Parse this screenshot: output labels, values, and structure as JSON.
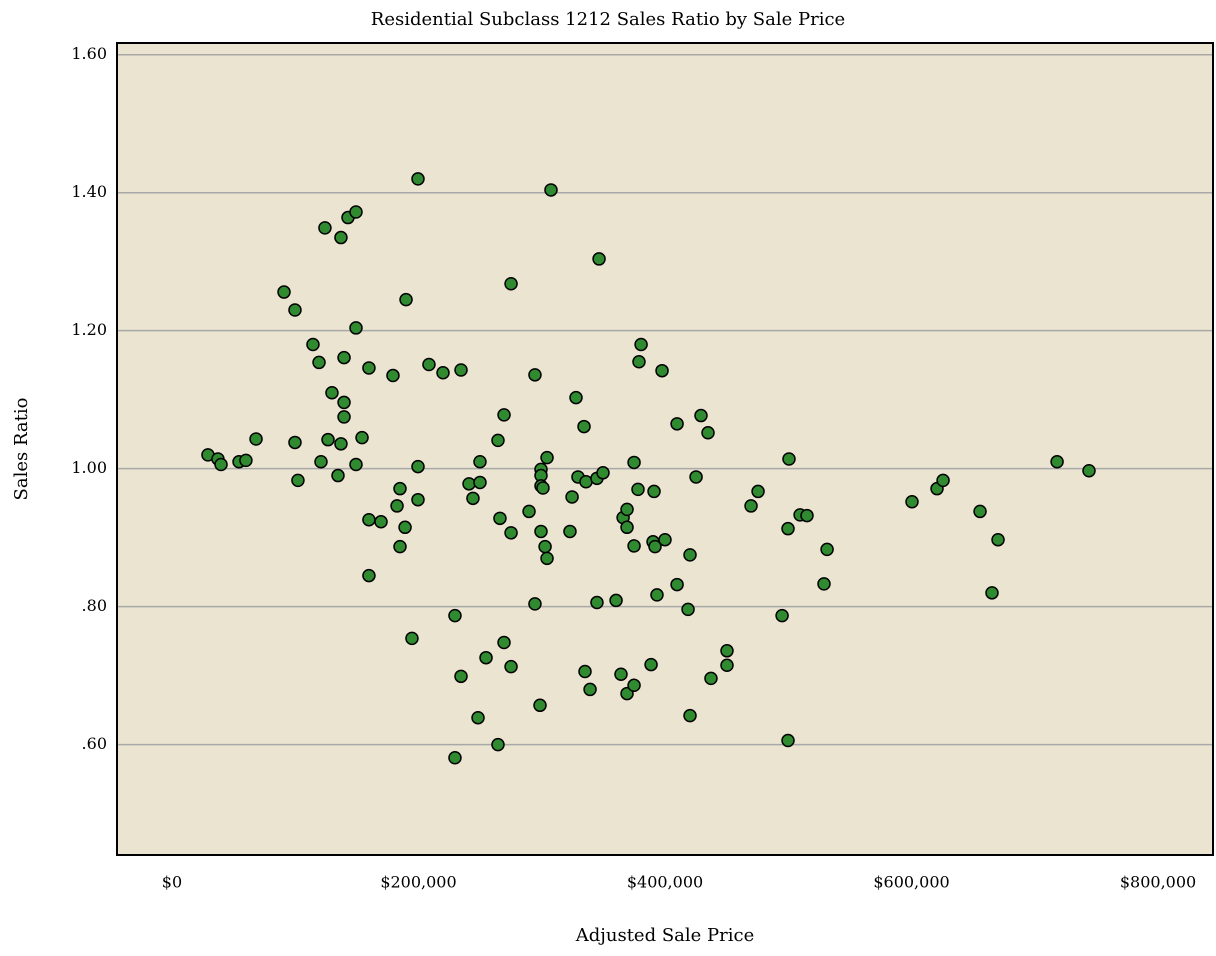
{
  "chart_data": {
    "type": "scatter",
    "title": "Residential Subclass 1212 Sales Ratio by Sale Price",
    "x_label": "Adjusted Sale Price",
    "y_label": "Sales Ratio",
    "xlim": [
      -44600,
      844600
    ],
    "ylim": [
      0.44,
      1.617
    ],
    "xticks": [
      {
        "value": 0,
        "label": "$0"
      },
      {
        "value": 200000,
        "label": "$200,000"
      },
      {
        "value": 400000,
        "label": "$400,000"
      },
      {
        "value": 600000,
        "label": "$600,000"
      },
      {
        "value": 800000,
        "label": "$800,000"
      }
    ],
    "yticks": [
      {
        "value": 0.6,
        "label": ".60"
      },
      {
        "value": 0.8,
        "label": ".80"
      },
      {
        "value": 1.0,
        "label": "1.00"
      },
      {
        "value": 1.2,
        "label": "1.20"
      },
      {
        "value": 1.4,
        "label": "1.40"
      },
      {
        "value": 1.6,
        "label": "1.60"
      }
    ],
    "grid": true,
    "series": [
      {
        "color": "#2f8a30",
        "x": [
          29200,
          37300,
          39800,
          54400,
          60000,
          68200,
          90900,
          99800,
          99800,
          102200,
          114400,
          119300,
          120900,
          124100,
          126600,
          129800,
          134700,
          137100,
          137100,
          139600,
          139600,
          139600,
          142800,
          149300,
          149300,
          149300,
          154200,
          159800,
          159800,
          159800,
          169600,
          179300,
          182600,
          185000,
          185000,
          189100,
          189900,
          194700,
          199600,
          199600,
          199600,
          208500,
          219900,
          229600,
          229600,
          234500,
          234500,
          241000,
          244200,
          248300,
          249900,
          249900,
          254800,
          264500,
          264500,
          266100,
          269400,
          269400,
          275100,
          275100,
          275100,
          289700,
          294500,
          294500,
          298600,
          299400,
          299400,
          299400,
          299400,
          301000,
          302700,
          304300,
          304300,
          307500,
          322900,
          324600,
          327800,
          329400,
          334300,
          335100,
          335900,
          339200,
          344800,
          344800,
          346500,
          349700,
          360300,
          364300,
          366000,
          369200,
          369200,
          369200,
          374900,
          374900,
          374900,
          378100,
          378900,
          380600,
          388700,
          390300,
          391100,
          391900,
          393500,
          397600,
          400000,
          409800,
          409800,
          418700,
          420300,
          420300,
          425200,
          429200,
          434900,
          437300,
          450300,
          450300,
          469800,
          475500,
          495000,
          499800,
          499800,
          500600,
          509600,
          515200,
          529000,
          531500,
          600400,
          620700,
          625600,
          655600,
          665300,
          670200,
          718100,
          744000
        ],
        "values": [
          1.02,
          1.014,
          1.006,
          1.01,
          1.012,
          1.043,
          1.256,
          1.23,
          1.038,
          0.983,
          1.18,
          1.154,
          1.01,
          1.349,
          1.042,
          1.11,
          0.99,
          1.335,
          1.036,
          1.161,
          1.096,
          1.075,
          1.364,
          1.372,
          1.204,
          1.006,
          1.045,
          1.146,
          0.926,
          0.845,
          0.923,
          1.135,
          0.946,
          0.971,
          0.887,
          0.915,
          1.245,
          0.754,
          1.42,
          1.003,
          0.955,
          1.151,
          1.139,
          0.787,
          0.581,
          1.143,
          0.699,
          0.978,
          0.957,
          0.639,
          1.01,
          0.98,
          0.726,
          1.041,
          0.6,
          0.928,
          1.078,
          0.748,
          1.268,
          0.907,
          0.713,
          0.938,
          1.136,
          0.804,
          0.657,
          0.999,
          0.99,
          0.975,
          0.909,
          0.972,
          0.887,
          1.016,
          0.87,
          1.404,
          0.909,
          0.959,
          1.103,
          0.988,
          1.061,
          0.706,
          0.981,
          0.68,
          0.986,
          0.806,
          1.304,
          0.994,
          0.809,
          0.702,
          0.929,
          0.941,
          0.915,
          0.674,
          1.009,
          0.888,
          0.686,
          0.97,
          1.155,
          1.18,
          0.716,
          0.894,
          0.967,
          0.887,
          0.817,
          1.142,
          0.897,
          1.065,
          0.832,
          0.796,
          0.875,
          0.642,
          0.988,
          1.077,
          1.052,
          0.696,
          0.736,
          0.715,
          0.946,
          0.967,
          0.787,
          0.606,
          0.913,
          1.014,
          0.933,
          0.932,
          0.833,
          0.883,
          0.952,
          0.971,
          0.983,
          0.938,
          0.82,
          0.897,
          1.01,
          0.997
        ]
      }
    ]
  }
}
